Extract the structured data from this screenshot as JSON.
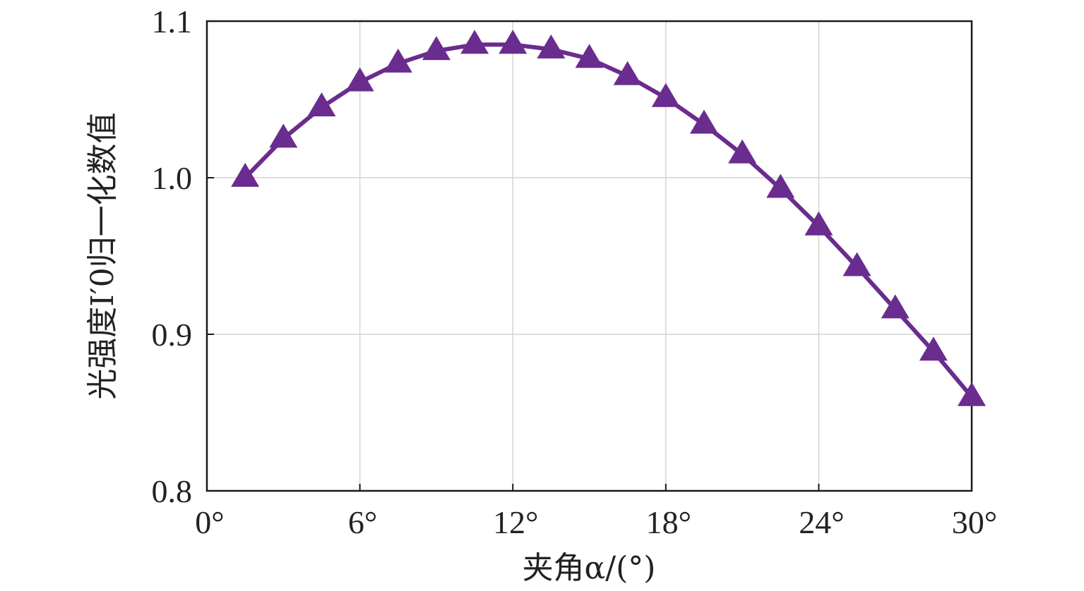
{
  "chart_data": {
    "type": "line",
    "xlabel": "夹角α/(°)",
    "ylabel": "光强度I′0归一化数值",
    "xlim": [
      0,
      30
    ],
    "ylim": [
      0.8,
      1.1
    ],
    "x_ticks": [
      0,
      6,
      12,
      18,
      24,
      30
    ],
    "x_tick_labels": [
      "0°",
      "6°",
      "12°",
      "18°",
      "24°",
      "30°"
    ],
    "y_ticks": [
      0.8,
      0.9,
      1.0,
      1.1
    ],
    "y_tick_labels": [
      "0.8",
      "0.9",
      "1.0",
      "1.1"
    ],
    "grid": true,
    "marker": "triangle",
    "color": "#6a2c8e",
    "series": [
      {
        "x": [
          1.5,
          3,
          4.5,
          6,
          7.5,
          9,
          10.5,
          12,
          13.5,
          15,
          16.5,
          18,
          19.5,
          21,
          22.5,
          24,
          25.5,
          27,
          28.5,
          30
        ],
        "values": [
          1.0,
          1.025,
          1.045,
          1.061,
          1.073,
          1.081,
          1.085,
          1.085,
          1.082,
          1.076,
          1.065,
          1.051,
          1.034,
          1.015,
          0.993,
          0.969,
          0.943,
          0.916,
          0.889,
          0.86
        ]
      }
    ]
  }
}
